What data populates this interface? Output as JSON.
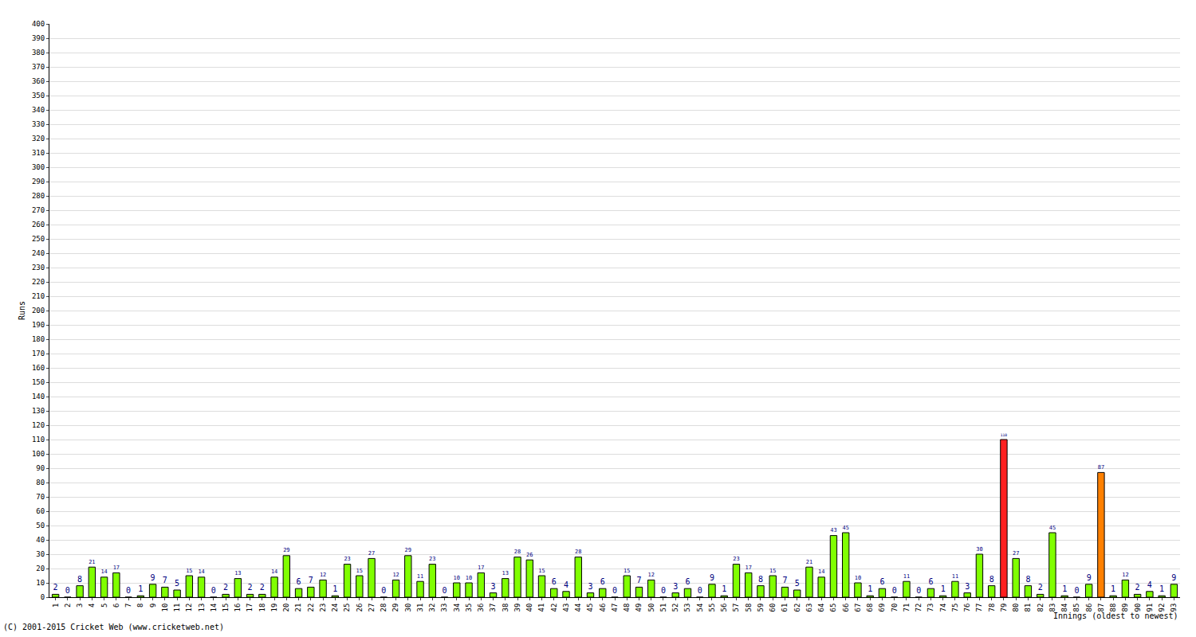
{
  "chart_data": {
    "type": "bar",
    "y_label": "Runs",
    "x_label": "Innings (oldest to newest)",
    "annotations": [
      "(C) 2001-2015 Cricket Web (www.cricketweb.net)"
    ],
    "categories": [
      "1",
      "2",
      "3",
      "4",
      "5",
      "6",
      "7",
      "8",
      "9",
      "10",
      "11",
      "12",
      "13",
      "14",
      "15",
      "16",
      "17",
      "18",
      "19",
      "20",
      "21",
      "22",
      "23",
      "24",
      "25",
      "26",
      "27",
      "28",
      "29",
      "30",
      "31",
      "32",
      "33",
      "34",
      "35",
      "36",
      "37",
      "38",
      "39",
      "40",
      "41",
      "42",
      "43",
      "44",
      "45",
      "46",
      "47",
      "48",
      "49",
      "50",
      "51",
      "52",
      "53",
      "54",
      "55",
      "56",
      "57",
      "58",
      "59",
      "60",
      "61",
      "62",
      "63",
      "64",
      "65",
      "66",
      "67",
      "68",
      "69",
      "70",
      "71",
      "72",
      "73",
      "74",
      "75",
      "76",
      "77",
      "78",
      "79",
      "80",
      "81",
      "82",
      "83",
      "84",
      "85",
      "86",
      "87",
      "88",
      "89",
      "90",
      "91",
      "92",
      "93"
    ],
    "values": [
      2,
      0,
      8,
      21,
      14,
      17,
      0,
      1,
      9,
      7,
      5,
      15,
      14,
      0,
      2,
      13,
      2,
      2,
      14,
      29,
      6,
      7,
      12,
      1,
      23,
      15,
      27,
      0,
      12,
      29,
      11,
      23,
      0,
      10,
      10,
      17,
      3,
      13,
      28,
      26,
      15,
      6,
      4,
      28,
      3,
      6,
      0,
      15,
      7,
      12,
      0,
      3,
      6,
      0,
      9,
      1,
      23,
      17,
      8,
      15,
      7,
      5,
      21,
      14,
      43,
      45,
      10,
      1,
      6,
      0,
      11,
      0,
      6,
      1,
      11,
      3,
      30,
      8,
      110,
      27,
      8,
      2,
      45,
      1,
      0,
      9,
      87,
      1,
      12,
      2,
      4,
      1,
      9
    ],
    "colors": [
      "#80ff00",
      "#80ff00",
      "#80ff00",
      "#80ff00",
      "#80ff00",
      "#80ff00",
      "#80ff00",
      "#80ff00",
      "#80ff00",
      "#80ff00",
      "#80ff00",
      "#80ff00",
      "#80ff00",
      "#80ff00",
      "#80ff00",
      "#80ff00",
      "#80ff00",
      "#80ff00",
      "#80ff00",
      "#80ff00",
      "#80ff00",
      "#80ff00",
      "#80ff00",
      "#80ff00",
      "#80ff00",
      "#80ff00",
      "#80ff00",
      "#80ff00",
      "#80ff00",
      "#80ff00",
      "#80ff00",
      "#80ff00",
      "#80ff00",
      "#80ff00",
      "#80ff00",
      "#80ff00",
      "#80ff00",
      "#80ff00",
      "#80ff00",
      "#80ff00",
      "#80ff00",
      "#80ff00",
      "#80ff00",
      "#80ff00",
      "#80ff00",
      "#80ff00",
      "#80ff00",
      "#80ff00",
      "#80ff00",
      "#80ff00",
      "#80ff00",
      "#80ff00",
      "#80ff00",
      "#80ff00",
      "#80ff00",
      "#80ff00",
      "#80ff00",
      "#80ff00",
      "#80ff00",
      "#80ff00",
      "#80ff00",
      "#80ff00",
      "#80ff00",
      "#80ff00",
      "#80ff00",
      "#80ff00",
      "#80ff00",
      "#80ff00",
      "#80ff00",
      "#80ff00",
      "#80ff00",
      "#80ff00",
      "#80ff00",
      "#80ff00",
      "#80ff00",
      "#80ff00",
      "#80ff00",
      "#80ff00",
      "#ff2020",
      "#80ff00",
      "#80ff00",
      "#80ff00",
      "#80ff00",
      "#80ff00",
      "#80ff00",
      "#80ff00",
      "#ff8000",
      "#80ff00",
      "#80ff00",
      "#80ff00",
      "#80ff00",
      "#80ff00",
      "#80ff00"
    ],
    "ylim": [
      0,
      400
    ],
    "yticks": [
      0,
      10,
      20,
      30,
      40,
      50,
      60,
      70,
      80,
      90,
      100,
      110,
      120,
      130,
      140,
      150,
      160,
      170,
      180,
      190,
      200,
      210,
      220,
      230,
      240,
      250,
      260,
      270,
      280,
      290,
      300,
      310,
      320,
      330,
      340,
      350,
      360,
      370,
      380,
      390,
      400
    ],
    "grid": true,
    "data_labels": true
  }
}
